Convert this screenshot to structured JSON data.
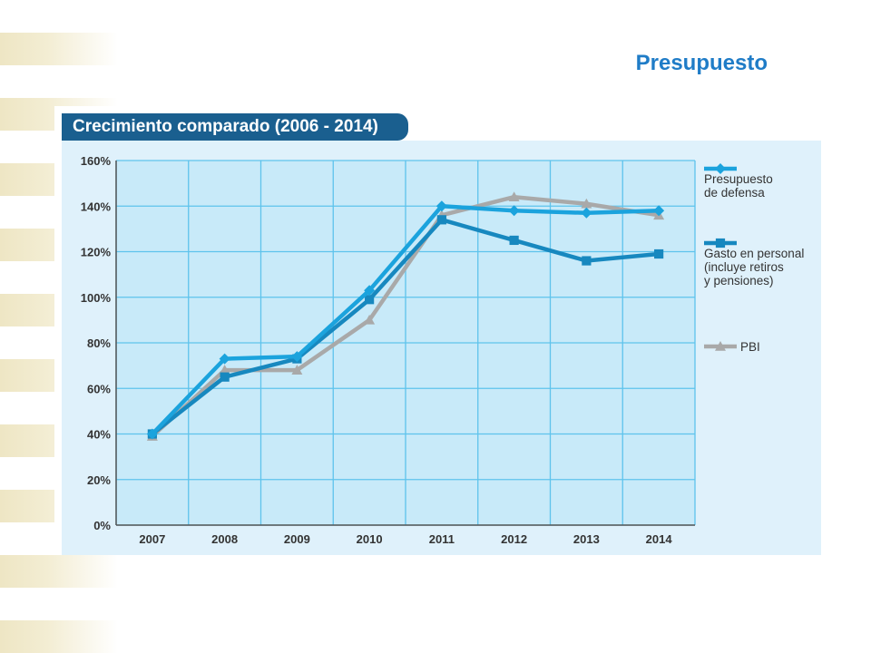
{
  "slide": {
    "title": "Presupuesto"
  },
  "chart_data": {
    "type": "line",
    "title": "Crecimiento comparado (2006 - 2014)",
    "xlabel": "",
    "ylabel": "",
    "categories": [
      "2007",
      "2008",
      "2009",
      "2010",
      "2011",
      "2012",
      "2013",
      "2014"
    ],
    "ylim": [
      0,
      160
    ],
    "y_ticks": [
      "0%",
      "20%",
      "40%",
      "60%",
      "80%",
      "100%",
      "120%",
      "140%",
      "160%"
    ],
    "grid": true,
    "legend_position": "right",
    "series": [
      {
        "name": "Presupuesto de defensa",
        "legend_lines": [
          "Presupuesto",
          "de defensa"
        ],
        "marker": "diamond",
        "color": "#1ba3dd",
        "values": [
          40,
          73,
          74,
          103,
          140,
          138,
          137,
          138
        ]
      },
      {
        "name": "Gasto en personal (incluye retiros y pensiones)",
        "legend_lines": [
          "Gasto en personal",
          "(incluye retiros",
          "y pensiones)"
        ],
        "marker": "square",
        "color": "#1788bf",
        "values": [
          40,
          65,
          73,
          99,
          134,
          125,
          116,
          119
        ]
      },
      {
        "name": "PBI",
        "legend_lines": [
          "PBI"
        ],
        "marker": "triangle",
        "color": "#a9a9a9",
        "values": [
          39,
          68,
          68,
          90,
          136,
          144,
          141,
          136
        ]
      }
    ]
  }
}
